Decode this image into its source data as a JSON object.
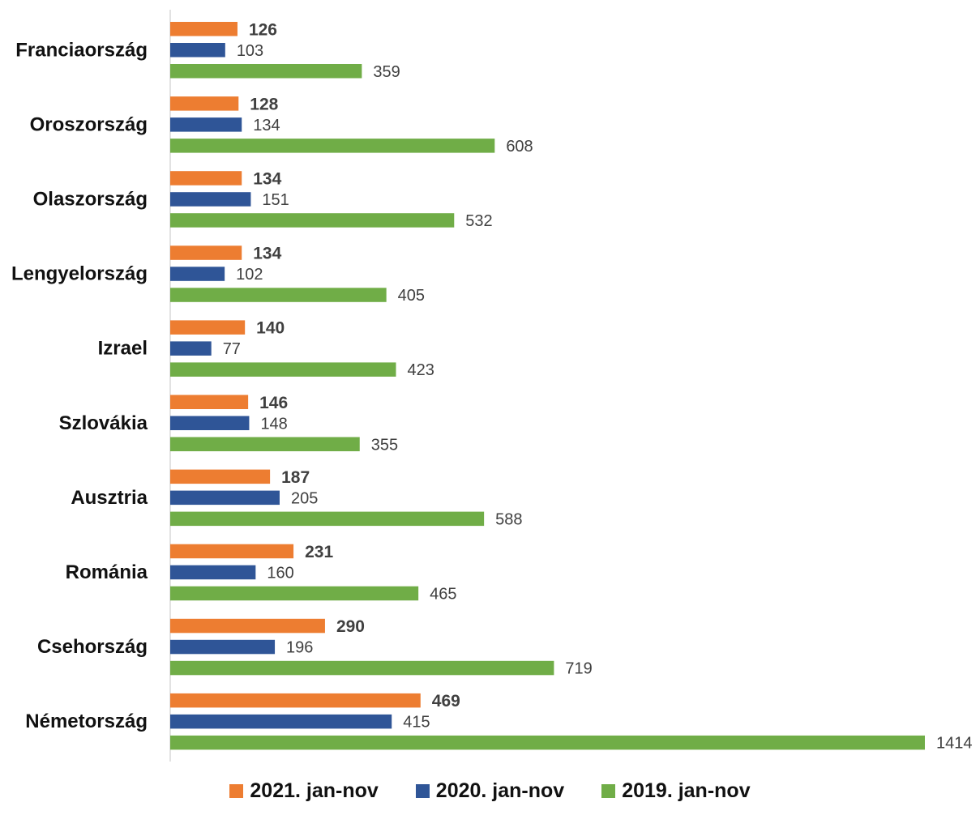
{
  "chart_data": {
    "type": "bar",
    "orientation": "horizontal",
    "categories": [
      "Franciaország",
      "Oroszország",
      "Olaszország",
      "Lengyelország",
      "Izrael",
      "Szlovákia",
      "Ausztria",
      "Románia",
      "Csehország",
      "Németország"
    ],
    "series": [
      {
        "name": "2021. jan-nov",
        "color": "#ED7D31",
        "values": [
          126,
          128,
          134,
          134,
          140,
          146,
          187,
          231,
          290,
          469
        ],
        "labels_bold": true
      },
      {
        "name": "2020. jan-nov",
        "color": "#2F5597",
        "values": [
          103,
          134,
          151,
          102,
          77,
          148,
          205,
          160,
          196,
          415
        ],
        "labels_bold": false
      },
      {
        "name": "2019. jan-nov",
        "color": "#70AD47",
        "values": [
          359,
          608,
          532,
          405,
          423,
          355,
          588,
          465,
          719,
          1414
        ],
        "labels_bold": false
      }
    ],
    "title": "",
    "xlabel": "",
    "ylabel": "",
    "xlim": [
      0,
      1414
    ],
    "grid": false,
    "data_labels": true,
    "legend_position": "bottom"
  }
}
